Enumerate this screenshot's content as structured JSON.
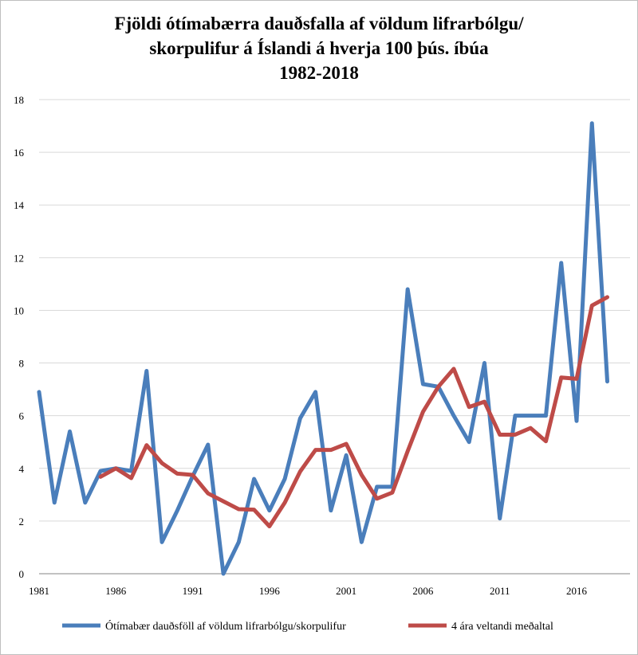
{
  "chart_data": {
    "type": "line",
    "title": [
      "Fjöldi ótímabærra dauðsfalla af völdum lifrarbólgu/",
      "skorpulifur á Íslandi á hverja 100 þús. íbúa",
      "1982-2018"
    ],
    "xlabel": "",
    "ylabel": "",
    "ylim": [
      0,
      18
    ],
    "yticks": [
      0,
      2,
      4,
      6,
      8,
      10,
      12,
      14,
      16,
      18
    ],
    "xlim": [
      1981,
      2018
    ],
    "xticks": [
      1981,
      1986,
      1991,
      1996,
      2001,
      2006,
      2011,
      2016
    ],
    "grid": true,
    "legend_position": "bottom",
    "series": [
      {
        "name": "Ótímabær dauðsföll af völdum lifrarbólgu/skorpulifur",
        "color": "#4a7ebb",
        "x": [
          1981,
          1982,
          1983,
          1984,
          1985,
          1986,
          1987,
          1988,
          1989,
          1990,
          1991,
          1992,
          1993,
          1994,
          1995,
          1996,
          1997,
          1998,
          1999,
          2000,
          2001,
          2002,
          2003,
          2004,
          2005,
          2006,
          2007,
          2008,
          2009,
          2010,
          2011,
          2012,
          2013,
          2014,
          2015,
          2016,
          2017,
          2018
        ],
        "values": [
          6.9,
          2.7,
          5.4,
          2.7,
          3.9,
          4.0,
          3.9,
          7.7,
          1.2,
          2.4,
          3.7,
          4.9,
          0.0,
          1.2,
          3.6,
          2.4,
          3.6,
          5.9,
          6.9,
          2.4,
          4.5,
          1.2,
          3.3,
          3.3,
          10.8,
          7.2,
          7.1,
          6.0,
          5.0,
          8.0,
          2.1,
          6.0,
          6.0,
          6.0,
          11.8,
          5.8,
          17.1,
          7.3
        ]
      },
      {
        "name": "4 ára veltandi meðaltal",
        "color": "#be4b48",
        "x": [
          1985,
          1986,
          1987,
          1988,
          1989,
          1990,
          1991,
          1992,
          1993,
          1994,
          1995,
          1996,
          1997,
          1998,
          1999,
          2000,
          2001,
          2002,
          2003,
          2004,
          2005,
          2006,
          2007,
          2008,
          2009,
          2010,
          2011,
          2012,
          2013,
          2014,
          2015,
          2016,
          2017,
          2018
        ],
        "values": [
          3.68,
          4.0,
          3.63,
          4.88,
          4.2,
          3.8,
          3.75,
          3.05,
          2.75,
          2.45,
          2.43,
          1.8,
          2.7,
          3.88,
          4.7,
          4.7,
          4.93,
          3.75,
          2.85,
          3.08,
          4.65,
          6.15,
          7.1,
          7.78,
          6.33,
          6.53,
          5.28,
          5.28,
          5.53,
          5.03,
          7.45,
          7.4,
          10.18,
          10.5
        ]
      }
    ]
  }
}
